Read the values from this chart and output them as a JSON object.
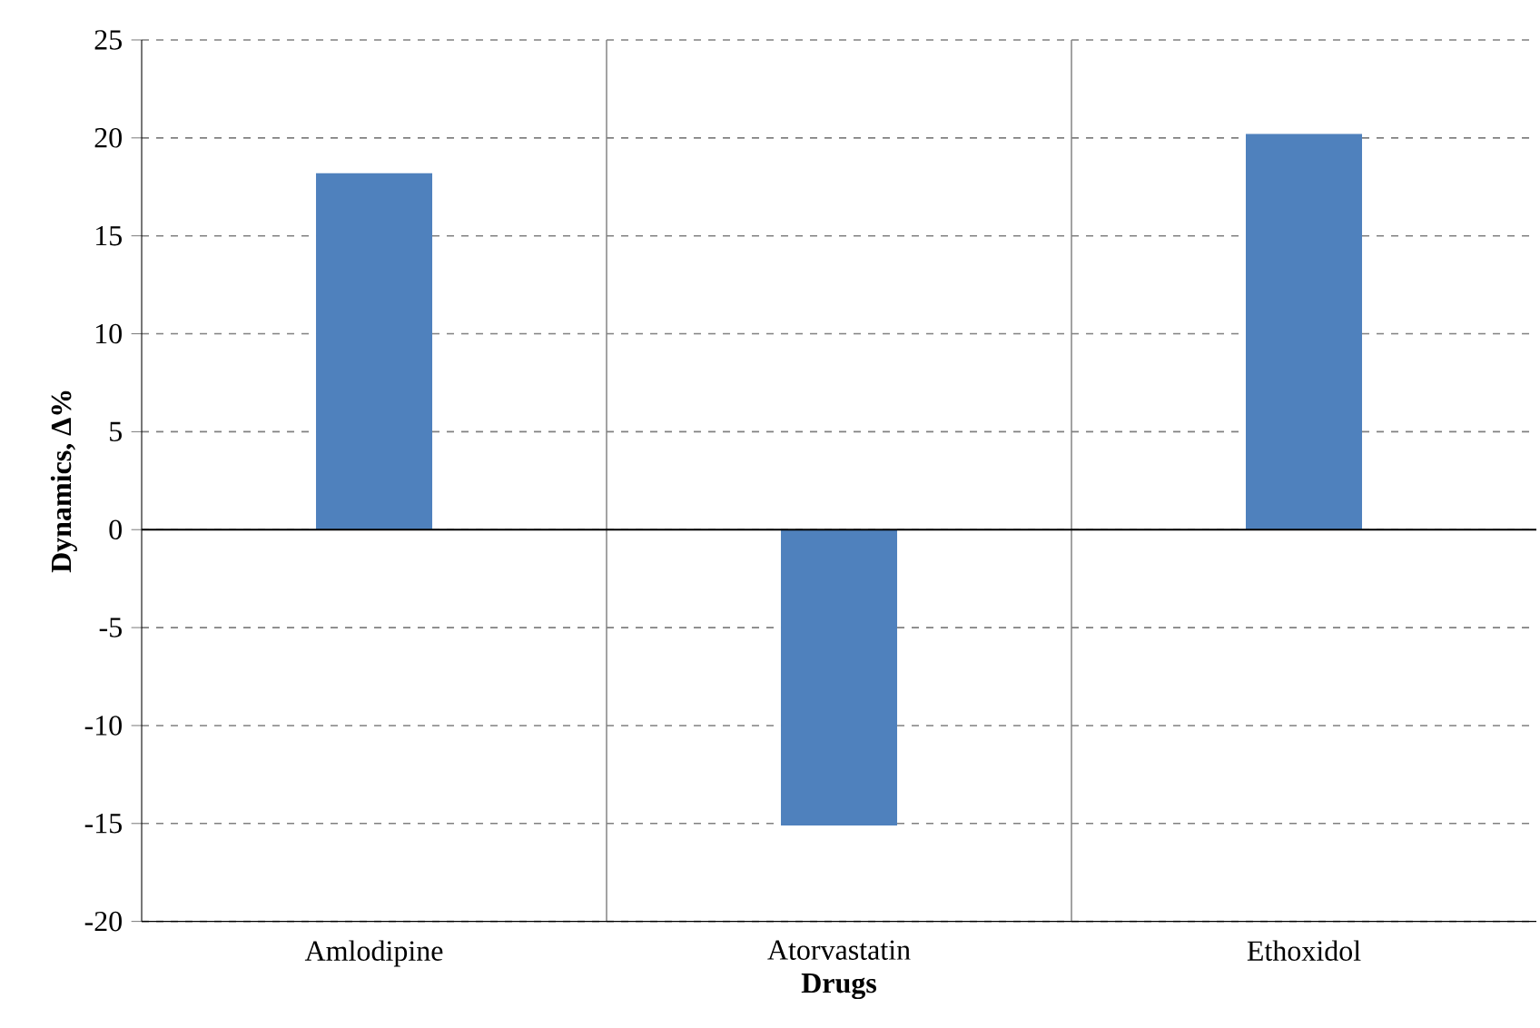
{
  "chart_data": {
    "type": "bar",
    "xlabel": "Drugs",
    "ylabel": "Dynamics, Δ%",
    "categories": [
      "Amlodipine",
      "Atorvastatin",
      "Ethoxidol"
    ],
    "values": [
      18.2,
      -15.1,
      20.2
    ],
    "color": "#4f81bd",
    "ylim": [
      -20,
      25
    ],
    "yticks": [
      -20,
      -15,
      -10,
      -5,
      0,
      5,
      10,
      15,
      20,
      25
    ],
    "grid": true
  }
}
